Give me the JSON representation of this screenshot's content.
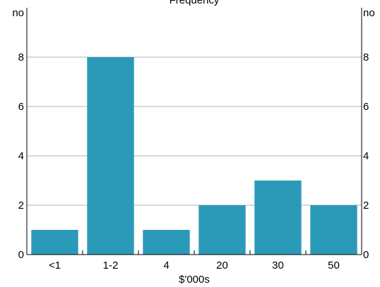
{
  "chart_data": {
    "type": "bar",
    "title": "Frequency",
    "xlabel": "$'000s",
    "ylabel_left": "no",
    "ylabel_right": "no",
    "categories": [
      "<1",
      "1-2",
      "4",
      "20",
      "30",
      "50"
    ],
    "values": [
      1,
      8,
      1,
      2,
      3,
      2
    ],
    "ylim": [
      0,
      10
    ],
    "yticks": [
      0,
      2,
      4,
      6,
      8
    ],
    "grid": true,
    "bar_color": "#2b9ab8",
    "grid_color": "#b3b3b3",
    "axis_color": "#000000"
  }
}
